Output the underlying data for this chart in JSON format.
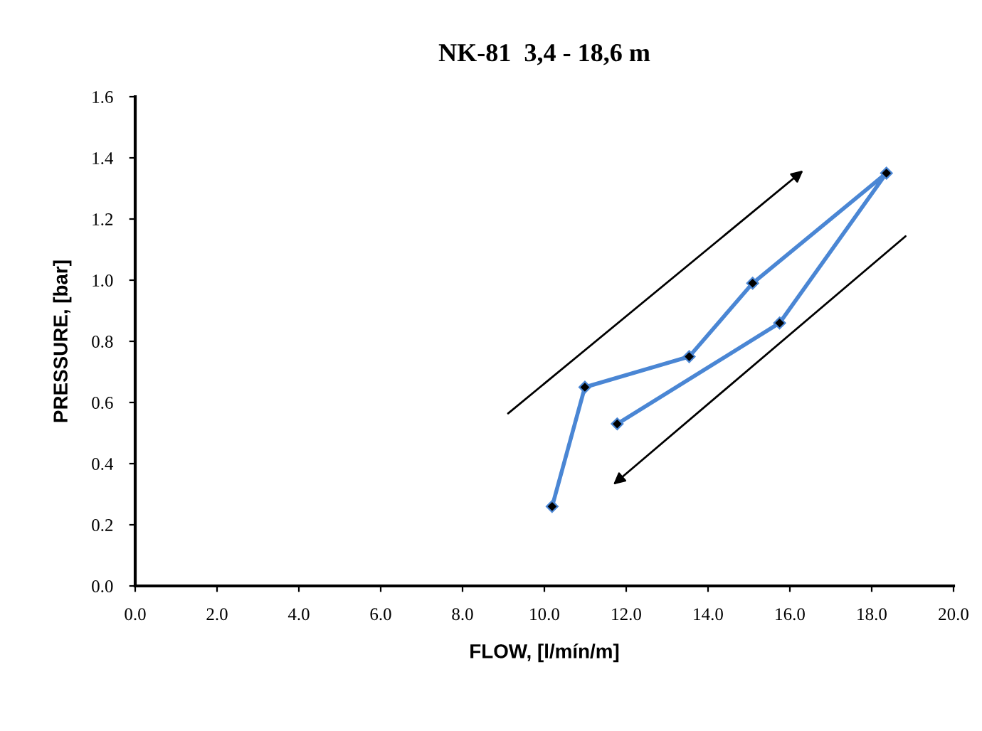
{
  "chart_data": {
    "type": "line",
    "title": "NK-81  3,4 - 18,6 m",
    "xlabel": "FLOW, [l/mín/m]",
    "ylabel": "PRESSURE, [bar]",
    "xlim": [
      0,
      20
    ],
    "xticks": [
      {
        "value": 0,
        "label": "0.0"
      },
      {
        "value": 2,
        "label": "2.0"
      },
      {
        "value": 4,
        "label": "4.0"
      },
      {
        "value": 6,
        "label": "6.0"
      },
      {
        "value": 8,
        "label": "8.0"
      },
      {
        "value": 10,
        "label": "10.0"
      },
      {
        "value": 12,
        "label": "12.0"
      },
      {
        "value": 14,
        "label": "14.0"
      },
      {
        "value": 16,
        "label": "16.0"
      },
      {
        "value": 18,
        "label": "18.0"
      },
      {
        "value": 20,
        "label": "20.0"
      }
    ],
    "ylim": [
      0,
      1.6
    ],
    "yticks": [
      {
        "value": 0,
        "label": "0.0"
      },
      {
        "value": 0.2,
        "label": "0.2"
      },
      {
        "value": 0.4,
        "label": "0.4"
      },
      {
        "value": 0.6,
        "label": "0.6"
      },
      {
        "value": 0.8,
        "label": "0.8"
      },
      {
        "value": 1.0,
        "label": "1.0"
      },
      {
        "value": 1.2,
        "label": "1.2"
      },
      {
        "value": 1.4,
        "label": "1.4"
      },
      {
        "value": 1.6,
        "label": "1.6"
      }
    ],
    "grid": false,
    "legend": false,
    "marker": "diamond",
    "line_style": "solid",
    "series": [
      {
        "color": "#4a86d4",
        "x": [
          10.19,
          10.99,
          13.54,
          15.09,
          18.36,
          15.75,
          11.78
        ],
        "values": [
          0.26,
          0.65,
          0.75,
          0.99,
          1.35,
          0.86,
          0.53
        ]
      }
    ]
  }
}
